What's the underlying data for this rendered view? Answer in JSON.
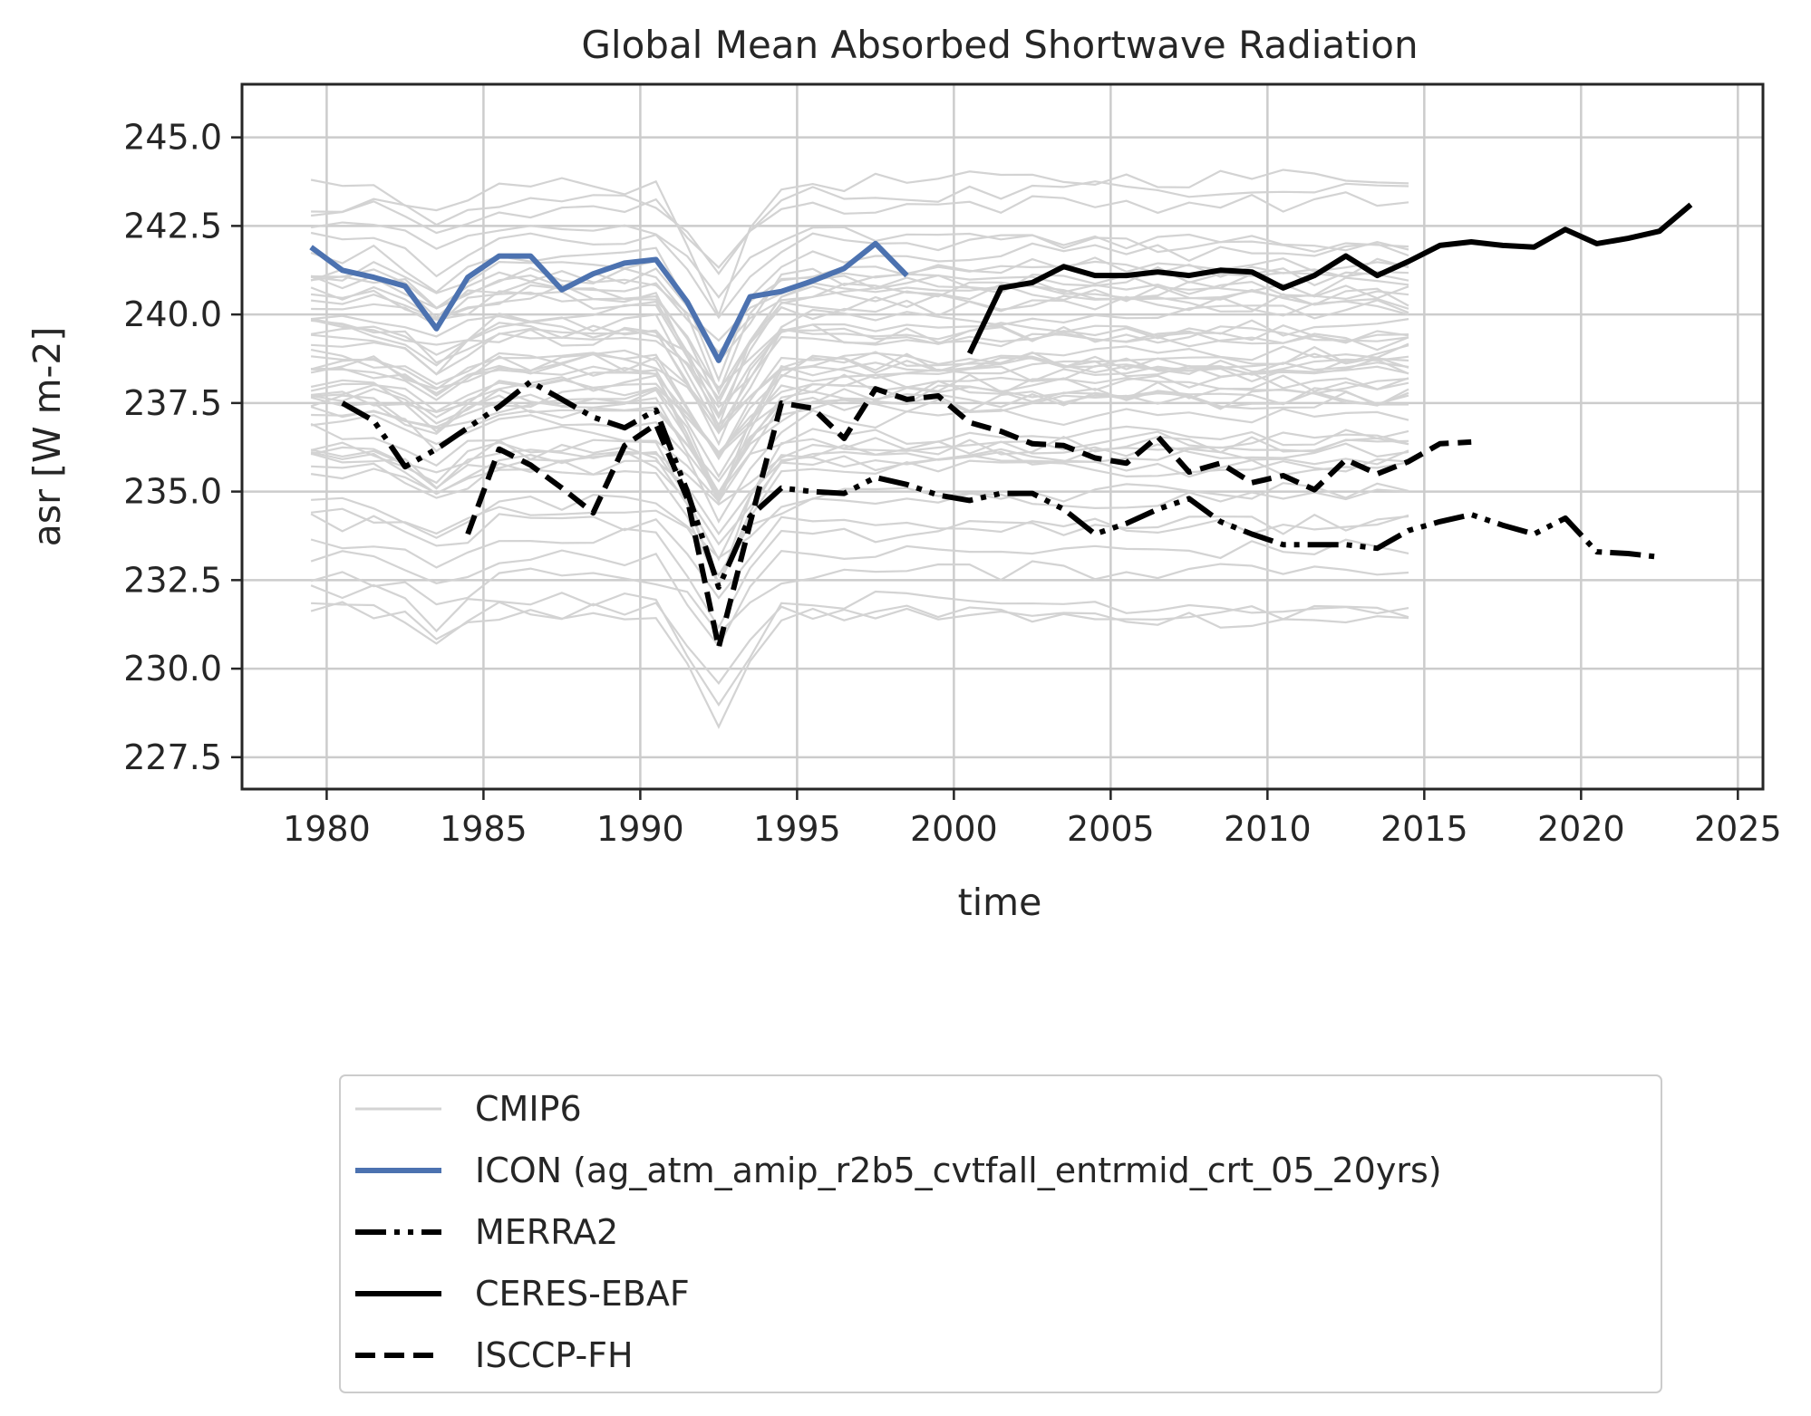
{
  "chart_data": {
    "type": "line",
    "title": "Global Mean Absorbed Shortwave Radiation",
    "xlabel": "time",
    "ylabel": "asr [W m-2]",
    "xlim": [
      1977.3,
      2025.8
    ],
    "ylim": [
      226.6,
      246.5
    ],
    "xticks": [
      1980,
      1985,
      1990,
      1995,
      2000,
      2005,
      2010,
      2015,
      2020,
      2025
    ],
    "yticks": [
      227.5,
      230.0,
      232.5,
      235.0,
      237.5,
      240.0,
      242.5,
      245.0
    ],
    "grid": true,
    "legend_position": "below",
    "colors": {
      "cmip6": "#d3d3d3",
      "icon": "#4c72b0",
      "obs": "#000000"
    },
    "series": [
      {
        "name": "ICON (ag_atm_amip_r2b5_cvtfall_entrmid_crt_05_20yrs)",
        "style": "solid-blue",
        "x": [
          1979.5,
          1980.5,
          1981.5,
          1982.5,
          1983.5,
          1984.5,
          1985.5,
          1986.5,
          1987.5,
          1988.5,
          1989.5,
          1990.5,
          1991.5,
          1992.5,
          1993.5,
          1994.5,
          1995.5,
          1996.5,
          1997.5,
          1998.5
        ],
        "y": [
          241.9,
          241.25,
          241.05,
          240.8,
          239.6,
          241.05,
          241.65,
          241.65,
          240.7,
          241.15,
          241.45,
          241.55,
          240.35,
          238.7,
          240.5,
          240.65,
          240.95,
          241.3,
          242.0,
          241.1
        ]
      },
      {
        "name": "MERRA2",
        "style": "dashdotdot",
        "x": [
          1980.5,
          1981.5,
          1982.5,
          1983.5,
          1984.5,
          1985.5,
          1986.5,
          1987.5,
          1988.5,
          1989.5,
          1990.5,
          1991.5,
          1992.5,
          1993.5,
          1994.5,
          1995.5,
          1996.5,
          1997.5,
          1998.5,
          1999.5,
          2000.5,
          2001.5,
          2002.5,
          2003.5,
          2004.5,
          2005.5,
          2006.5,
          2007.5,
          2008.5,
          2009.5,
          2010.5,
          2011.5,
          2012.5,
          2013.5,
          2014.5,
          2015.5,
          2016.5,
          2017.5,
          2018.5,
          2019.5,
          2020.5,
          2021.5,
          2022.5
        ],
        "y": [
          237.5,
          237.0,
          235.7,
          236.2,
          236.8,
          237.4,
          238.1,
          237.6,
          237.1,
          236.8,
          237.3,
          235.0,
          232.3,
          234.3,
          235.1,
          235.0,
          234.95,
          235.4,
          235.2,
          234.9,
          234.75,
          234.95,
          234.95,
          234.5,
          233.8,
          234.1,
          234.5,
          234.8,
          234.15,
          233.8,
          233.5,
          233.5,
          233.5,
          233.4,
          233.9,
          234.15,
          234.35,
          234.05,
          233.8,
          234.25,
          233.3,
          233.25,
          233.15
        ]
      },
      {
        "name": "CERES-EBAF",
        "style": "solid-black",
        "x": [
          2000.5,
          2001.5,
          2002.5,
          2003.5,
          2004.5,
          2005.5,
          2006.5,
          2007.5,
          2008.5,
          2009.5,
          2010.5,
          2011.5,
          2012.5,
          2013.5,
          2014.5,
          2015.5,
          2016.5,
          2017.5,
          2018.5,
          2019.5,
          2020.5,
          2021.5,
          2022.5,
          2023.5
        ],
        "y": [
          238.9,
          240.75,
          240.9,
          241.35,
          241.1,
          241.1,
          241.2,
          241.1,
          241.25,
          241.2,
          240.75,
          241.1,
          241.65,
          241.1,
          241.5,
          241.95,
          242.05,
          241.95,
          241.9,
          242.4,
          242.0,
          242.15,
          242.35,
          243.1
        ]
      },
      {
        "name": "ISCCP-FH",
        "style": "dashed",
        "x": [
          1984.5,
          1985.5,
          1986.5,
          1987.5,
          1988.5,
          1989.5,
          1990.5,
          1991.5,
          1992.5,
          1993.5,
          1994.5,
          1995.5,
          1996.5,
          1997.5,
          1998.5,
          1999.5,
          2000.5,
          2001.5,
          2002.5,
          2003.5,
          2004.5,
          2005.5,
          2006.5,
          2007.5,
          2008.5,
          2009.5,
          2010.5,
          2011.5,
          2012.5,
          2013.5,
          2014.5,
          2015.5,
          2016.5
        ],
        "y": [
          233.8,
          236.2,
          235.75,
          235.1,
          234.4,
          236.3,
          236.9,
          234.8,
          230.6,
          234.1,
          237.5,
          237.35,
          236.5,
          237.9,
          237.6,
          237.7,
          236.95,
          236.7,
          236.35,
          236.3,
          235.95,
          235.8,
          236.55,
          235.55,
          235.8,
          235.25,
          235.45,
          235.05,
          235.9,
          235.5,
          235.85,
          236.35,
          236.4
        ]
      }
    ],
    "cmip6_band": {
      "name": "CMIP6",
      "style": "thin-lightgray",
      "x_start": 1979.5,
      "x_end": 2014.5,
      "members": 55,
      "min_level": 230.2,
      "max_level": 244.5,
      "volcanic_dip_year": 1992.5,
      "volcanic_dip_depth": 2.6,
      "early_dip_year": 1983.5,
      "early_dip_depth": 0.8
    }
  }
}
